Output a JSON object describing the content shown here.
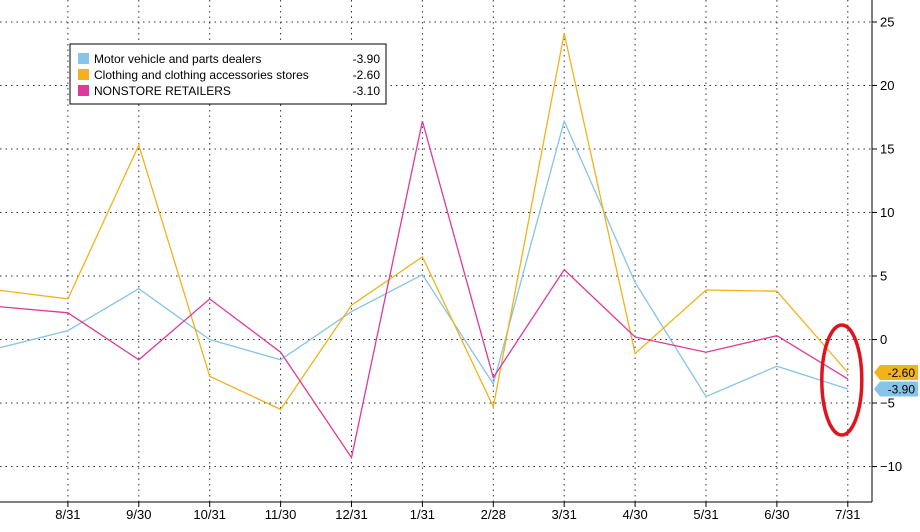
{
  "chart_data": {
    "type": "line",
    "title": "",
    "xlabel": "",
    "ylabel": "",
    "categories": [
      "7/31",
      "8/31",
      "9/30",
      "10/31",
      "11/30",
      "12/31",
      "1/31",
      "2/28",
      "3/31",
      "4/30",
      "5/31",
      "6/30",
      "7/31"
    ],
    "visible_x_ticks": [
      "8/31",
      "9/30",
      "10/31",
      "11/30",
      "12/31",
      "1/31",
      "2/28",
      "3/31",
      "4/30",
      "5/31",
      "6/30",
      "7/31"
    ],
    "y_ticks": [
      25,
      20,
      15,
      10,
      5,
      0,
      -5,
      -10
    ],
    "ylim": [
      -12.5,
      25.5
    ],
    "grid": true,
    "legend_position": "top-left",
    "y_axis_position": "right",
    "series": [
      {
        "name": "Motor vehicle and parts dealers",
        "last_value_label": "-3.90",
        "color": "#86C4E8",
        "values": [
          -0.7,
          0.7,
          4.0,
          0.0,
          -1.6,
          2.2,
          5.1,
          -3.5,
          17.2,
          4.5,
          -4.5,
          -2.1,
          -3.9
        ]
      },
      {
        "name": "Clothing and clothing accessories stores",
        "last_value_label": "-2.60",
        "color": "#F2B21B",
        "values": [
          3.9,
          3.2,
          15.3,
          -2.9,
          -5.5,
          2.7,
          6.5,
          -5.3,
          24.1,
          -1.1,
          3.9,
          3.8,
          -2.6
        ]
      },
      {
        "name": "NONSTORE RETAILERS",
        "last_value_label": "-3.10",
        "color": "#E0399C",
        "values": [
          2.6,
          2.1,
          -1.6,
          3.2,
          -1.0,
          -9.3,
          17.2,
          -3.0,
          5.5,
          0.2,
          -1.0,
          0.3,
          -3.1
        ]
      }
    ],
    "end_labels": [
      {
        "series": "Clothing and clothing accessories stores",
        "text": "-2.60",
        "color": "#F2B21B"
      },
      {
        "series": "Motor vehicle and parts dealers",
        "text": "-3.90",
        "color": "#86C4E8"
      }
    ],
    "annotation": {
      "type": "ellipse",
      "color": "#E0141E",
      "target_category": "7/31"
    }
  }
}
